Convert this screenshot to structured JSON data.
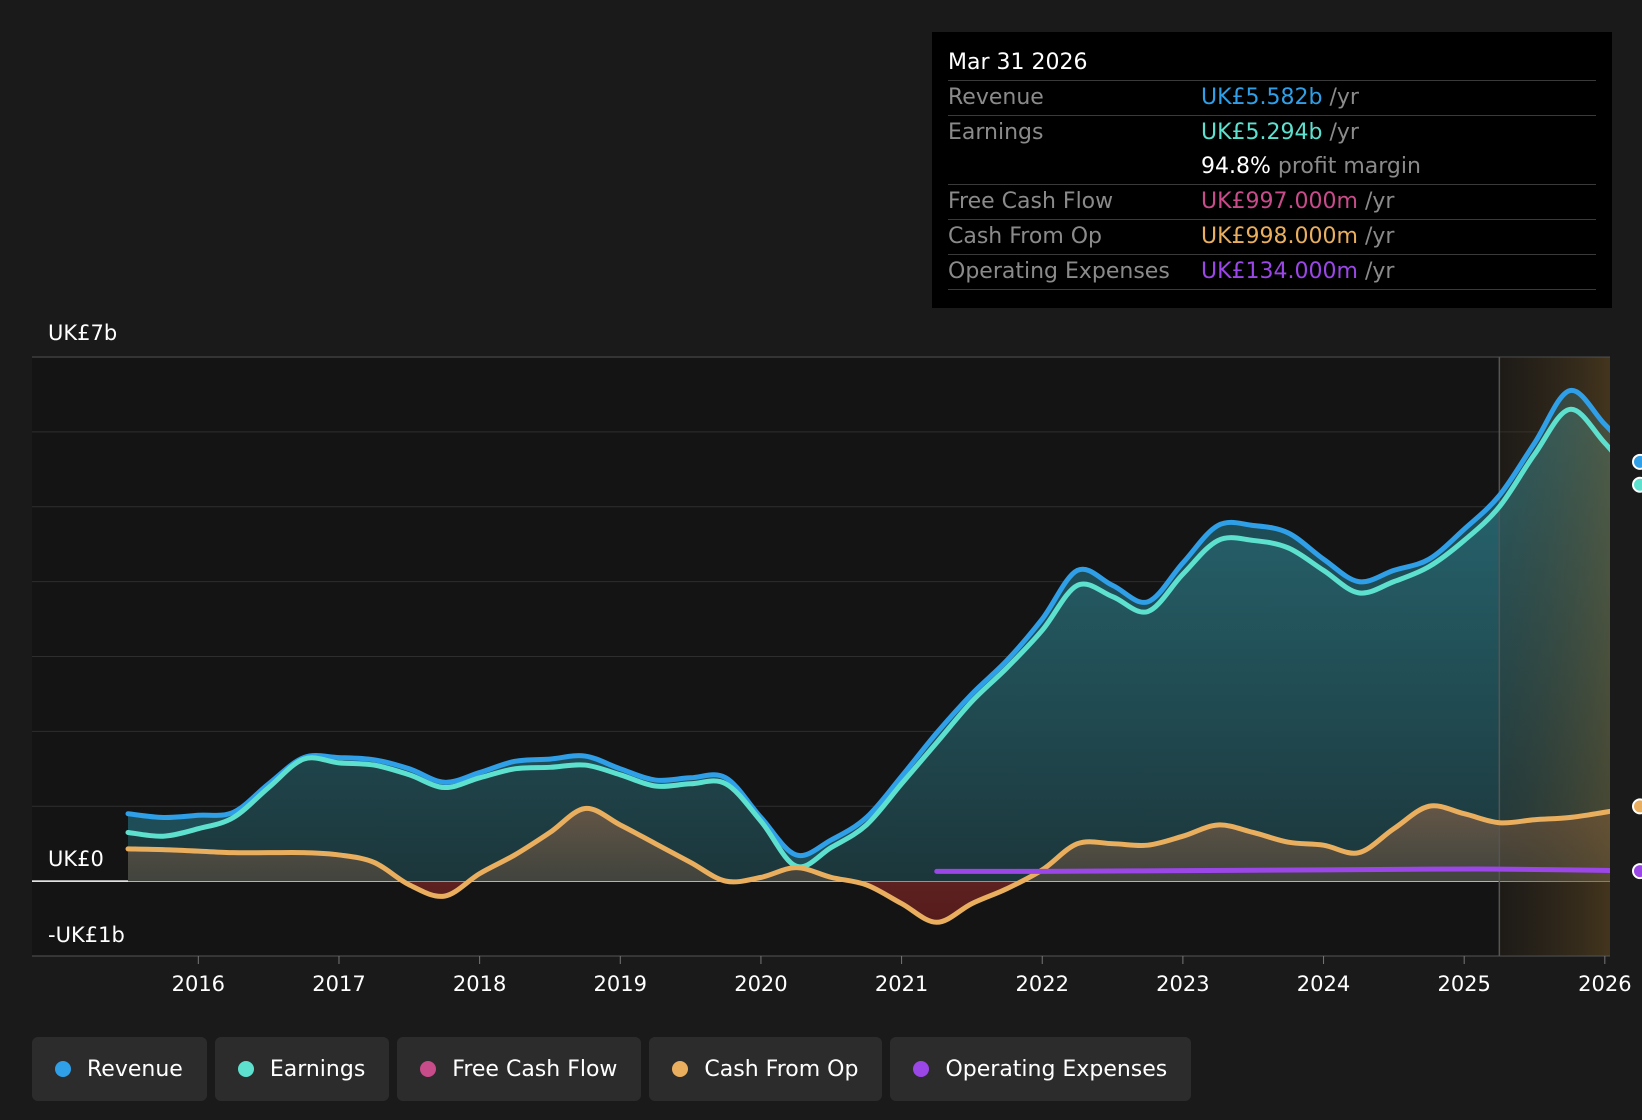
{
  "tooltip": {
    "date": "Mar 31 2026",
    "rows": [
      {
        "label": "Revenue",
        "value": "UK£5.582b",
        "unit": "/yr",
        "color": "#2f9fe8"
      },
      {
        "label": "Earnings",
        "value": "UK£5.294b",
        "unit": "/yr",
        "color": "#5ee0cf"
      },
      {
        "label": "",
        "value": "94.8%",
        "unit": "profit margin",
        "color": "#ffffff"
      },
      {
        "label": "Free Cash Flow",
        "value": "UK£997.000m",
        "unit": "/yr",
        "color": "#c84b8a"
      },
      {
        "label": "Cash From Op",
        "value": "UK£998.000m",
        "unit": "/yr",
        "color": "#e9ae5e"
      },
      {
        "label": "Operating Expenses",
        "value": "UK£134.000m",
        "unit": "/yr",
        "color": "#9b46e6"
      }
    ]
  },
  "legend": [
    {
      "label": "Revenue",
      "color": "#2f9fe8"
    },
    {
      "label": "Earnings",
      "color": "#5ee0cf"
    },
    {
      "label": "Free Cash Flow",
      "color": "#c84b8a"
    },
    {
      "label": "Cash From Op",
      "color": "#e9ae5e"
    },
    {
      "label": "Operating Expenses",
      "color": "#9b46e6"
    }
  ],
  "chart_data": {
    "type": "area",
    "y_tick_labels": [
      "UK£7b",
      "UK£0",
      "-UK£1b"
    ],
    "ylim": [
      -1,
      7
    ],
    "xlim": [
      2015.5,
      2026.25
    ],
    "x_ticks": [
      2016,
      2017,
      2018,
      2019,
      2020,
      2021,
      2022,
      2023,
      2024,
      2025,
      2026
    ],
    "x_tick_labels": [
      "2016",
      "2017",
      "2018",
      "2019",
      "2020",
      "2021",
      "2022",
      "2023",
      "2024",
      "2025",
      "2026"
    ],
    "forecast_from": 2025.25,
    "grid": true,
    "legend_position": "bottom-left",
    "series": [
      {
        "name": "Revenue",
        "color": "#2f9fe8",
        "x": [
          2015.5,
          2015.75,
          2016.0,
          2016.25,
          2016.5,
          2016.75,
          2017.0,
          2017.25,
          2017.5,
          2017.75,
          2018.0,
          2018.25,
          2018.5,
          2018.75,
          2019.0,
          2019.25,
          2019.5,
          2019.75,
          2020.0,
          2020.25,
          2020.5,
          2020.75,
          2021.0,
          2021.25,
          2021.5,
          2021.75,
          2022.0,
          2022.25,
          2022.5,
          2022.75,
          2023.0,
          2023.25,
          2023.5,
          2023.75,
          2024.0,
          2024.25,
          2024.5,
          2024.75,
          2025.0,
          2025.25,
          2025.5,
          2025.75,
          2026.0,
          2026.25
        ],
        "values": [
          0.9,
          0.85,
          0.88,
          0.92,
          1.3,
          1.65,
          1.65,
          1.62,
          1.5,
          1.32,
          1.45,
          1.6,
          1.63,
          1.67,
          1.5,
          1.35,
          1.38,
          1.38,
          0.85,
          0.35,
          0.55,
          0.85,
          1.4,
          1.98,
          2.5,
          2.95,
          3.5,
          4.15,
          3.95,
          3.73,
          4.25,
          4.75,
          4.75,
          4.65,
          4.3,
          4.0,
          4.15,
          4.3,
          4.7,
          5.15,
          5.85,
          6.55,
          6.1,
          5.6
        ]
      },
      {
        "name": "Earnings",
        "color": "#5ee0cf",
        "x": [
          2015.5,
          2015.75,
          2016.0,
          2016.25,
          2016.5,
          2016.75,
          2017.0,
          2017.25,
          2017.5,
          2017.75,
          2018.0,
          2018.25,
          2018.5,
          2018.75,
          2019.0,
          2019.25,
          2019.5,
          2019.75,
          2020.0,
          2020.25,
          2020.5,
          2020.75,
          2021.0,
          2021.25,
          2021.5,
          2021.75,
          2022.0,
          2022.25,
          2022.5,
          2022.75,
          2023.0,
          2023.25,
          2023.5,
          2023.75,
          2024.0,
          2024.25,
          2024.5,
          2024.75,
          2025.0,
          2025.25,
          2025.5,
          2025.75,
          2026.0,
          2026.25
        ],
        "values": [
          0.65,
          0.6,
          0.7,
          0.85,
          1.25,
          1.63,
          1.58,
          1.55,
          1.42,
          1.25,
          1.38,
          1.5,
          1.52,
          1.55,
          1.42,
          1.27,
          1.3,
          1.3,
          0.8,
          0.2,
          0.45,
          0.75,
          1.3,
          1.85,
          2.4,
          2.85,
          3.35,
          3.95,
          3.8,
          3.6,
          4.1,
          4.55,
          4.55,
          4.45,
          4.15,
          3.85,
          4.0,
          4.2,
          4.55,
          5.0,
          5.7,
          6.3,
          5.85,
          5.294
        ]
      },
      {
        "name": "Cash From Op",
        "color": "#e9ae5e",
        "x": [
          2015.5,
          2015.75,
          2016.0,
          2016.25,
          2016.5,
          2016.75,
          2017.0,
          2017.25,
          2017.5,
          2017.75,
          2018.0,
          2018.25,
          2018.5,
          2018.75,
          2019.0,
          2019.25,
          2019.5,
          2019.75,
          2020.0,
          2020.25,
          2020.5,
          2020.75,
          2021.0,
          2021.25,
          2021.5,
          2021.75,
          2022.0,
          2022.25,
          2022.5,
          2022.75,
          2023.0,
          2023.25,
          2023.5,
          2023.75,
          2024.0,
          2024.25,
          2024.5,
          2024.75,
          2025.0,
          2025.25,
          2025.5,
          2025.75,
          2026.0,
          2026.25
        ],
        "values": [
          0.43,
          0.42,
          0.4,
          0.38,
          0.38,
          0.38,
          0.35,
          0.25,
          -0.05,
          -0.2,
          0.1,
          0.35,
          0.65,
          0.97,
          0.75,
          0.5,
          0.25,
          0.0,
          0.05,
          0.18,
          0.05,
          -0.05,
          -0.3,
          -0.55,
          -0.3,
          -0.1,
          0.15,
          0.5,
          0.5,
          0.48,
          0.6,
          0.75,
          0.65,
          0.52,
          0.48,
          0.38,
          0.7,
          1.0,
          0.9,
          0.78,
          0.82,
          0.85,
          0.92,
          0.998
        ]
      },
      {
        "name": "Operating Expenses",
        "color": "#9b46e6",
        "x": [
          2021.25,
          2022.0,
          2023.0,
          2024.0,
          2024.75,
          2025.25,
          2025.75,
          2026.25
        ],
        "values": [
          0.13,
          0.13,
          0.14,
          0.15,
          0.16,
          0.16,
          0.15,
          0.134
        ]
      }
    ]
  }
}
